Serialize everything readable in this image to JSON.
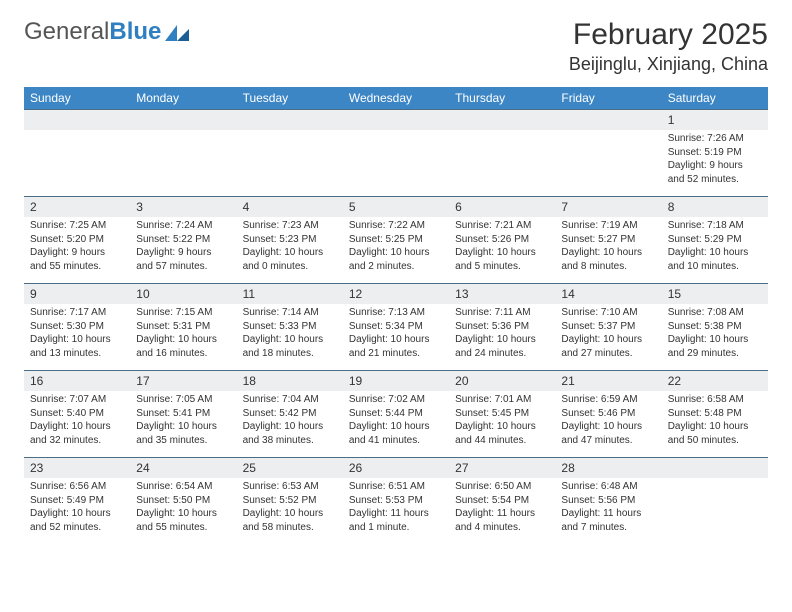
{
  "logo": {
    "text1": "General",
    "text2": "Blue"
  },
  "title": "February 2025",
  "location": "Beijinglu, Xinjiang, China",
  "colors": {
    "header_bg": "#3d86c6",
    "header_text": "#ffffff",
    "daynum_bg": "#eceeef",
    "border": "#4a6d88",
    "text": "#333333"
  },
  "weekdays": [
    "Sunday",
    "Monday",
    "Tuesday",
    "Wednesday",
    "Thursday",
    "Friday",
    "Saturday"
  ],
  "weeks": [
    {
      "nums": [
        "",
        "",
        "",
        "",
        "",
        "",
        "1"
      ],
      "info": [
        {},
        {},
        {},
        {},
        {},
        {},
        {
          "sunrise": "Sunrise: 7:26 AM",
          "sunset": "Sunset: 5:19 PM",
          "day1": "Daylight: 9 hours",
          "day2": "and 52 minutes."
        }
      ]
    },
    {
      "nums": [
        "2",
        "3",
        "4",
        "5",
        "6",
        "7",
        "8"
      ],
      "info": [
        {
          "sunrise": "Sunrise: 7:25 AM",
          "sunset": "Sunset: 5:20 PM",
          "day1": "Daylight: 9 hours",
          "day2": "and 55 minutes."
        },
        {
          "sunrise": "Sunrise: 7:24 AM",
          "sunset": "Sunset: 5:22 PM",
          "day1": "Daylight: 9 hours",
          "day2": "and 57 minutes."
        },
        {
          "sunrise": "Sunrise: 7:23 AM",
          "sunset": "Sunset: 5:23 PM",
          "day1": "Daylight: 10 hours",
          "day2": "and 0 minutes."
        },
        {
          "sunrise": "Sunrise: 7:22 AM",
          "sunset": "Sunset: 5:25 PM",
          "day1": "Daylight: 10 hours",
          "day2": "and 2 minutes."
        },
        {
          "sunrise": "Sunrise: 7:21 AM",
          "sunset": "Sunset: 5:26 PM",
          "day1": "Daylight: 10 hours",
          "day2": "and 5 minutes."
        },
        {
          "sunrise": "Sunrise: 7:19 AM",
          "sunset": "Sunset: 5:27 PM",
          "day1": "Daylight: 10 hours",
          "day2": "and 8 minutes."
        },
        {
          "sunrise": "Sunrise: 7:18 AM",
          "sunset": "Sunset: 5:29 PM",
          "day1": "Daylight: 10 hours",
          "day2": "and 10 minutes."
        }
      ]
    },
    {
      "nums": [
        "9",
        "10",
        "11",
        "12",
        "13",
        "14",
        "15"
      ],
      "info": [
        {
          "sunrise": "Sunrise: 7:17 AM",
          "sunset": "Sunset: 5:30 PM",
          "day1": "Daylight: 10 hours",
          "day2": "and 13 minutes."
        },
        {
          "sunrise": "Sunrise: 7:15 AM",
          "sunset": "Sunset: 5:31 PM",
          "day1": "Daylight: 10 hours",
          "day2": "and 16 minutes."
        },
        {
          "sunrise": "Sunrise: 7:14 AM",
          "sunset": "Sunset: 5:33 PM",
          "day1": "Daylight: 10 hours",
          "day2": "and 18 minutes."
        },
        {
          "sunrise": "Sunrise: 7:13 AM",
          "sunset": "Sunset: 5:34 PM",
          "day1": "Daylight: 10 hours",
          "day2": "and 21 minutes."
        },
        {
          "sunrise": "Sunrise: 7:11 AM",
          "sunset": "Sunset: 5:36 PM",
          "day1": "Daylight: 10 hours",
          "day2": "and 24 minutes."
        },
        {
          "sunrise": "Sunrise: 7:10 AM",
          "sunset": "Sunset: 5:37 PM",
          "day1": "Daylight: 10 hours",
          "day2": "and 27 minutes."
        },
        {
          "sunrise": "Sunrise: 7:08 AM",
          "sunset": "Sunset: 5:38 PM",
          "day1": "Daylight: 10 hours",
          "day2": "and 29 minutes."
        }
      ]
    },
    {
      "nums": [
        "16",
        "17",
        "18",
        "19",
        "20",
        "21",
        "22"
      ],
      "info": [
        {
          "sunrise": "Sunrise: 7:07 AM",
          "sunset": "Sunset: 5:40 PM",
          "day1": "Daylight: 10 hours",
          "day2": "and 32 minutes."
        },
        {
          "sunrise": "Sunrise: 7:05 AM",
          "sunset": "Sunset: 5:41 PM",
          "day1": "Daylight: 10 hours",
          "day2": "and 35 minutes."
        },
        {
          "sunrise": "Sunrise: 7:04 AM",
          "sunset": "Sunset: 5:42 PM",
          "day1": "Daylight: 10 hours",
          "day2": "and 38 minutes."
        },
        {
          "sunrise": "Sunrise: 7:02 AM",
          "sunset": "Sunset: 5:44 PM",
          "day1": "Daylight: 10 hours",
          "day2": "and 41 minutes."
        },
        {
          "sunrise": "Sunrise: 7:01 AM",
          "sunset": "Sunset: 5:45 PM",
          "day1": "Daylight: 10 hours",
          "day2": "and 44 minutes."
        },
        {
          "sunrise": "Sunrise: 6:59 AM",
          "sunset": "Sunset: 5:46 PM",
          "day1": "Daylight: 10 hours",
          "day2": "and 47 minutes."
        },
        {
          "sunrise": "Sunrise: 6:58 AM",
          "sunset": "Sunset: 5:48 PM",
          "day1": "Daylight: 10 hours",
          "day2": "and 50 minutes."
        }
      ]
    },
    {
      "nums": [
        "23",
        "24",
        "25",
        "26",
        "27",
        "28",
        ""
      ],
      "info": [
        {
          "sunrise": "Sunrise: 6:56 AM",
          "sunset": "Sunset: 5:49 PM",
          "day1": "Daylight: 10 hours",
          "day2": "and 52 minutes."
        },
        {
          "sunrise": "Sunrise: 6:54 AM",
          "sunset": "Sunset: 5:50 PM",
          "day1": "Daylight: 10 hours",
          "day2": "and 55 minutes."
        },
        {
          "sunrise": "Sunrise: 6:53 AM",
          "sunset": "Sunset: 5:52 PM",
          "day1": "Daylight: 10 hours",
          "day2": "and 58 minutes."
        },
        {
          "sunrise": "Sunrise: 6:51 AM",
          "sunset": "Sunset: 5:53 PM",
          "day1": "Daylight: 11 hours",
          "day2": "and 1 minute."
        },
        {
          "sunrise": "Sunrise: 6:50 AM",
          "sunset": "Sunset: 5:54 PM",
          "day1": "Daylight: 11 hours",
          "day2": "and 4 minutes."
        },
        {
          "sunrise": "Sunrise: 6:48 AM",
          "sunset": "Sunset: 5:56 PM",
          "day1": "Daylight: 11 hours",
          "day2": "and 7 minutes."
        },
        {}
      ]
    }
  ]
}
